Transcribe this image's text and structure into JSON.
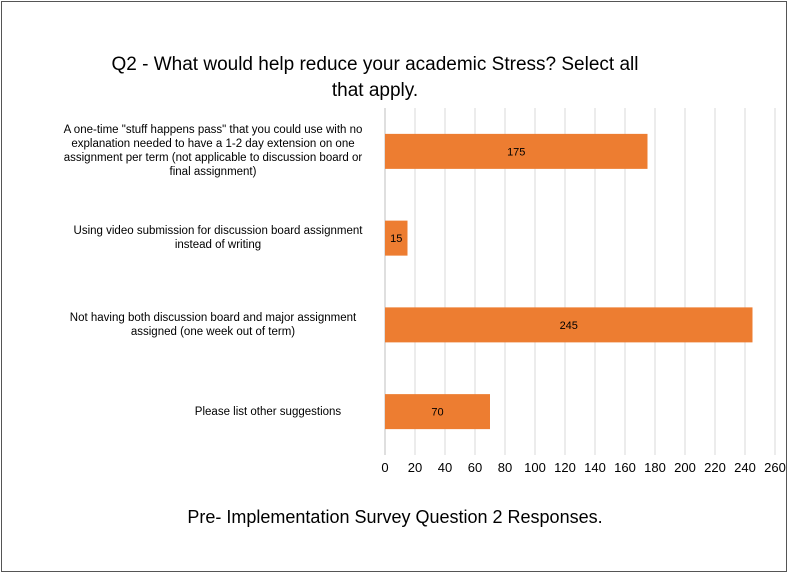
{
  "chart_data": {
    "type": "bar",
    "orientation": "horizontal",
    "title": "Q2 - What would help reduce your academic Stress? Select all that apply.",
    "caption": "Pre-  Implementation Survey Question 2 Responses.",
    "categories": [
      "A one-time \"stuff happens pass\" that you could use with no explanation needed to have a 1-2 day extension on one assignment per term (not applicable to discussion board or final assignment)",
      "Using video submission for discussion board assignment instead of writing",
      "Not having both discussion board and major assignment assigned (one week out of term)",
      "Please list other suggestions"
    ],
    "values": [
      175,
      15,
      245,
      70
    ],
    "xlim": [
      0,
      260
    ],
    "xticks": [
      0,
      20,
      40,
      60,
      80,
      100,
      120,
      140,
      160,
      180,
      200,
      220,
      240,
      260
    ],
    "grid": true,
    "bar_color": "#ED7D31",
    "data_labels": true
  }
}
